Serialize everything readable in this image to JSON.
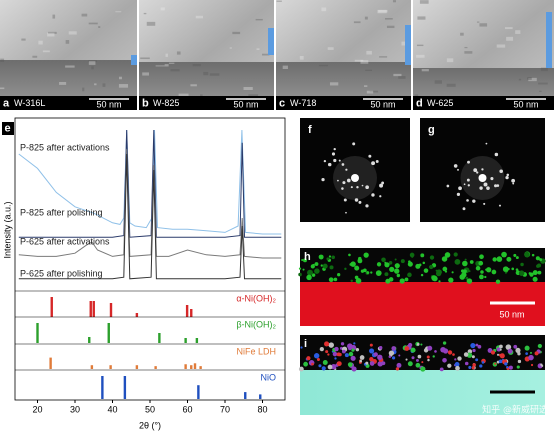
{
  "micrographs": [
    {
      "label": "a",
      "name": "W-316L",
      "scale": "50 nm"
    },
    {
      "label": "b",
      "name": "W-825",
      "scale": "50 nm"
    },
    {
      "label": "c",
      "name": "W-718",
      "scale": "50 nm"
    },
    {
      "label": "d",
      "name": "W-625",
      "scale": "50 nm"
    }
  ],
  "xrd": {
    "label": "e",
    "xlabel": "2θ (°)",
    "ylabel": "Intensity (a.u.)",
    "xlim": [
      14,
      86
    ],
    "ylim": [
      0,
      100
    ],
    "xticks": [
      20,
      30,
      40,
      50,
      60,
      70,
      80
    ],
    "curves": [
      {
        "name": "P-825 after activations",
        "color": "#8fc0e8",
        "x": [
          15,
          20,
          25,
          30,
          35,
          40,
          42,
          43,
          43.8,
          44.6,
          46,
          49,
          50.5,
          51.2,
          52,
          56,
          60,
          65,
          70,
          73.5,
          74.5,
          75.5,
          80,
          85
        ],
        "values": [
          85,
          76,
          61,
          52,
          48,
          42,
          41,
          45,
          100,
          42,
          40,
          39,
          45,
          100,
          39,
          38,
          38,
          37,
          36,
          40,
          100,
          36,
          35,
          35
        ]
      },
      {
        "name": "P-825 after polishing",
        "color": "#2a3a6a",
        "x": [
          15,
          20,
          30,
          40,
          43,
          43.8,
          44.6,
          50.3,
          51,
          51.7,
          60,
          70,
          74,
          74.6,
          75.2,
          80,
          85
        ],
        "values": [
          33,
          33,
          33,
          33,
          34,
          100,
          33,
          34,
          100,
          33,
          33,
          33,
          34,
          92,
          33,
          33,
          33
        ]
      },
      {
        "name": "P-625 after activations",
        "color": "#7a7a7a",
        "x": [
          15,
          20,
          25,
          30,
          33,
          34.5,
          36,
          40,
          43,
          43.8,
          44.6,
          50.3,
          51,
          51.7,
          55,
          60,
          65,
          70,
          74,
          74.6,
          75.2,
          80,
          85
        ],
        "values": [
          22,
          21,
          21,
          23,
          28,
          30,
          25,
          21,
          22,
          88,
          21,
          22,
          78,
          21,
          21,
          25,
          22,
          21,
          22,
          45,
          21,
          20,
          20
        ]
      },
      {
        "name": "P-625 after polishing",
        "color": "#333333",
        "x": [
          15,
          20,
          30,
          40,
          43,
          43.8,
          44.6,
          50.3,
          51,
          51.7,
          60,
          70,
          74,
          74.6,
          75.2,
          80,
          85
        ],
        "values": [
          7,
          7,
          7,
          7,
          8,
          85,
          7,
          8,
          75,
          7,
          7,
          7,
          8,
          40,
          7,
          7,
          7
        ]
      }
    ],
    "references": [
      {
        "name": "α-Ni(OH)₂",
        "color": "#d62728",
        "positions": [
          23.8,
          34.2,
          35,
          39.6,
          46.5,
          59.9,
          61
        ],
        "intensities": [
          100,
          80,
          80,
          70,
          20,
          60,
          40
        ]
      },
      {
        "name": "β-Ni(OH)₂",
        "color": "#2ca02c",
        "positions": [
          20,
          33.8,
          39,
          52.5,
          59.5,
          62.5
        ],
        "intensities": [
          100,
          30,
          100,
          50,
          25,
          25
        ]
      },
      {
        "name": "NiFe LDH",
        "color": "#e07b39",
        "positions": [
          23.5,
          34.5,
          39.5,
          46.5,
          51.5,
          59.5,
          61,
          62,
          63.5
        ],
        "intensities": [
          60,
          20,
          20,
          20,
          15,
          25,
          20,
          30,
          15
        ]
      },
      {
        "name": "NiO",
        "color": "#1f4fbf",
        "positions": [
          37.3,
          43.3,
          62.9,
          75.4,
          79.4
        ],
        "intensities": [
          100,
          100,
          60,
          30,
          20
        ]
      }
    ]
  },
  "saed": [
    {
      "label": "f"
    },
    {
      "label": "g"
    }
  ],
  "eds": [
    {
      "label": "h",
      "scale": "50 nm"
    },
    {
      "label": "i"
    }
  ],
  "watermark": "知乎 @新威研选"
}
